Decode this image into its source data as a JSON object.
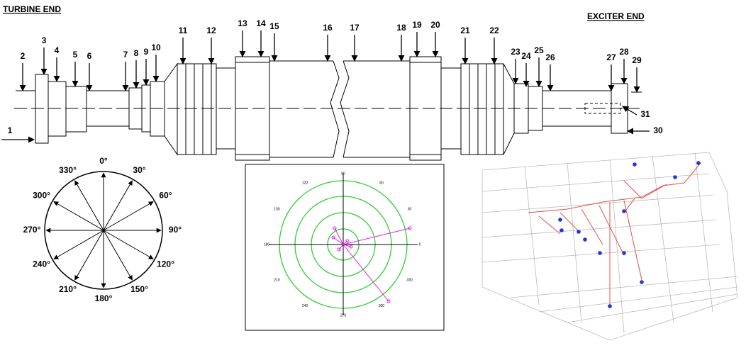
{
  "header": {
    "left": "TURBINE END",
    "right": "EXCITER END"
  },
  "stations": [
    "1",
    "2",
    "3",
    "4",
    "5",
    "6",
    "7",
    "8",
    "9",
    "10",
    "11",
    "12",
    "13",
    "14",
    "15",
    "16",
    "17",
    "18",
    "19",
    "20",
    "21",
    "22",
    "23",
    "24",
    "25",
    "26",
    "27",
    "28",
    "29",
    "30",
    "31"
  ],
  "compass": {
    "angles": [
      "0°",
      "30°",
      "60°",
      "90°",
      "120°",
      "150°",
      "180°",
      "210°",
      "240°",
      "270°",
      "300°",
      "330°"
    ]
  },
  "polar": {
    "angles": [
      "0",
      "30",
      "60",
      "90",
      "120",
      "150",
      "180",
      "210",
      "240",
      "270",
      "300",
      "330"
    ]
  }
}
